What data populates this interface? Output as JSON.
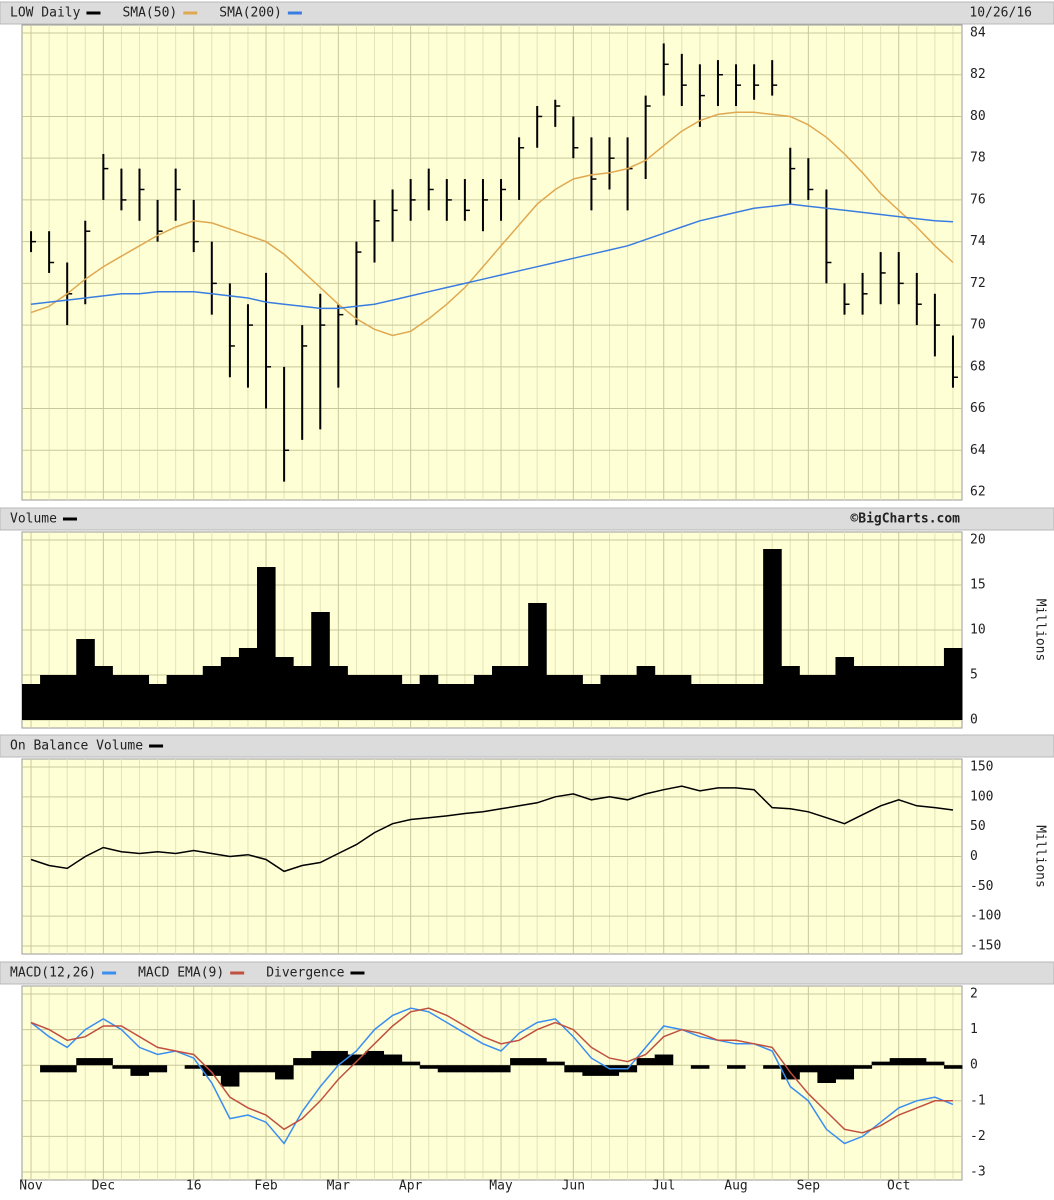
{
  "chart_data": [
    {
      "type": "ohlc",
      "date": "10/26/16",
      "ylim": [
        62,
        84
      ],
      "yticks": [
        62,
        64,
        66,
        68,
        70,
        72,
        74,
        76,
        78,
        80,
        82,
        84
      ],
      "grid": true,
      "series": [
        {
          "name": "LOW Daily",
          "color": "#000000",
          "high": [
            74.5,
            74.5,
            73,
            75,
            78.2,
            77.5,
            77.5,
            76,
            77.5,
            76,
            74,
            72,
            71,
            72.5,
            68,
            70,
            71.5,
            71,
            74,
            76,
            76.5,
            77,
            77.5,
            77,
            77,
            77,
            77,
            79,
            80.5,
            80.8,
            80,
            79,
            79,
            79,
            81,
            83.5,
            83,
            82.5,
            82.7,
            82.5,
            82.5,
            82.7,
            78.5,
            78,
            76.5,
            72,
            72.5,
            73.5,
            73.5,
            72.5,
            71.5,
            69.5
          ],
          "low": [
            73.5,
            72.5,
            70,
            71,
            76,
            75.5,
            75,
            74,
            75,
            73.5,
            70.5,
            67.5,
            67,
            66,
            62.5,
            64.5,
            65,
            67,
            70,
            73,
            74,
            75,
            75.5,
            75,
            75,
            74.5,
            75,
            76,
            78.5,
            79.5,
            78,
            75.5,
            76.5,
            75.5,
            77,
            81,
            80.5,
            79.5,
            80.5,
            80.5,
            80.8,
            81,
            75.8,
            76,
            72,
            70.5,
            70.5,
            71,
            71,
            70,
            68.5,
            67
          ],
          "close": [
            74,
            73,
            71.5,
            74.5,
            77.5,
            76,
            76.5,
            74.5,
            76.5,
            74,
            72,
            69,
            70,
            68,
            64,
            69,
            70,
            70.5,
            73.5,
            75,
            75.5,
            76,
            76.5,
            76,
            75.5,
            76,
            76.5,
            78.5,
            80,
            80.5,
            78.5,
            77,
            78,
            77.5,
            80.5,
            82.5,
            81.5,
            81,
            82,
            81.5,
            81.5,
            81.5,
            77.5,
            76.5,
            73,
            71,
            71.5,
            72.5,
            72,
            71,
            70,
            67.5
          ]
        },
        {
          "name": "SMA(50)",
          "color": "#e0a850",
          "values": [
            70.6,
            70.9,
            71.5,
            72.2,
            72.8,
            73.3,
            73.8,
            74.3,
            74.7,
            75.0,
            74.9,
            74.6,
            74.3,
            74.0,
            73.4,
            72.6,
            71.8,
            71.0,
            70.3,
            69.8,
            69.5,
            69.7,
            70.3,
            71.0,
            71.8,
            72.8,
            73.8,
            74.8,
            75.8,
            76.5,
            77.0,
            77.2,
            77.3,
            77.5,
            77.9,
            78.6,
            79.3,
            79.8,
            80.1,
            80.2,
            80.2,
            80.1,
            80.0,
            79.6,
            79.0,
            78.2,
            77.3,
            76.3,
            75.5,
            74.7,
            73.8,
            73.0
          ]
        },
        {
          "name": "SMA(200)",
          "color": "#3a7de0",
          "values": [
            71.0,
            71.1,
            71.2,
            71.3,
            71.4,
            71.5,
            71.5,
            71.6,
            71.6,
            71.6,
            71.5,
            71.4,
            71.3,
            71.1,
            71.0,
            70.9,
            70.8,
            70.8,
            70.9,
            71.0,
            71.2,
            71.4,
            71.6,
            71.8,
            72.0,
            72.2,
            72.4,
            72.6,
            72.8,
            73.0,
            73.2,
            73.4,
            73.6,
            73.8,
            74.1,
            74.4,
            74.7,
            75.0,
            75.2,
            75.4,
            75.6,
            75.7,
            75.8,
            75.7,
            75.6,
            75.5,
            75.4,
            75.3,
            75.2,
            75.1,
            75.0,
            74.95
          ]
        }
      ]
    },
    {
      "type": "bar",
      "annotation": "©BigCharts.com",
      "y_label": "Millions",
      "ylim": [
        0,
        20
      ],
      "yticks": [
        0,
        5,
        10,
        15,
        20
      ],
      "grid": true,
      "series": [
        {
          "name": "Volume",
          "color": "#000000",
          "values": [
            4,
            5,
            5,
            9,
            6,
            5,
            5,
            4,
            5,
            5,
            6,
            7,
            8,
            17,
            7,
            6,
            12,
            6,
            5,
            5,
            5,
            4,
            5,
            4,
            4,
            5,
            6,
            6,
            13,
            5,
            5,
            4,
            5,
            5,
            6,
            5,
            5,
            4,
            4,
            4,
            4,
            19,
            6,
            5,
            5,
            7,
            6,
            6,
            6,
            6,
            6,
            8
          ]
        }
      ]
    },
    {
      "type": "line",
      "y_label": "Millions",
      "ylim": [
        -150,
        150
      ],
      "yticks": [
        -150,
        -100,
        -50,
        0,
        50,
        100,
        150
      ],
      "grid": true,
      "series": [
        {
          "name": "On Balance Volume",
          "color": "#000000",
          "values": [
            -5,
            -15,
            -20,
            0,
            15,
            8,
            5,
            8,
            5,
            10,
            5,
            0,
            3,
            -5,
            -25,
            -15,
            -10,
            5,
            20,
            40,
            55,
            62,
            65,
            68,
            72,
            75,
            80,
            85,
            90,
            100,
            105,
            95,
            100,
            95,
            105,
            112,
            118,
            110,
            115,
            115,
            112,
            82,
            80,
            75,
            65,
            55,
            70,
            85,
            95,
            85,
            82,
            78
          ]
        }
      ]
    },
    {
      "type": "line",
      "ylim": [
        -3,
        2
      ],
      "yticks": [
        -3,
        -2,
        -1,
        0,
        1,
        2
      ],
      "grid": true,
      "categories": [
        "Nov",
        null,
        null,
        null,
        "Dec",
        null,
        null,
        null,
        null,
        "16",
        null,
        null,
        null,
        "Feb",
        null,
        null,
        null,
        "Mar",
        null,
        null,
        null,
        "Apr",
        null,
        null,
        null,
        null,
        "May",
        null,
        null,
        null,
        "Jun",
        null,
        null,
        null,
        null,
        "Jul",
        null,
        null,
        null,
        "Aug",
        null,
        null,
        null,
        "Sep",
        null,
        null,
        null,
        null,
        "Oct",
        null,
        null,
        null
      ],
      "series": [
        {
          "name": "MACD(12,26)",
          "color": "#3a8ef0",
          "values": [
            1.2,
            0.8,
            0.5,
            1.0,
            1.3,
            1.0,
            0.5,
            0.3,
            0.4,
            0.2,
            -0.5,
            -1.5,
            -1.4,
            -1.6,
            -2.2,
            -1.3,
            -0.6,
            0,
            0.4,
            1.0,
            1.4,
            1.6,
            1.5,
            1.2,
            0.9,
            0.6,
            0.4,
            0.9,
            1.2,
            1.3,
            0.8,
            0.2,
            -0.1,
            -0.1,
            0.5,
            1.1,
            1.0,
            0.8,
            0.7,
            0.6,
            0.6,
            0.4,
            -0.6,
            -1.0,
            -1.8,
            -2.2,
            -2.0,
            -1.6,
            -1.2,
            -1.0,
            -0.9,
            -1.1
          ]
        },
        {
          "name": "MACD EMA(9)",
          "color": "#c05040",
          "values": [
            1.2,
            1.0,
            0.7,
            0.8,
            1.1,
            1.1,
            0.8,
            0.5,
            0.4,
            0.3,
            -0.2,
            -0.9,
            -1.2,
            -1.4,
            -1.8,
            -1.5,
            -1.0,
            -0.4,
            0.1,
            0.6,
            1.1,
            1.5,
            1.6,
            1.4,
            1.1,
            0.8,
            0.6,
            0.7,
            1.0,
            1.2,
            1.0,
            0.5,
            0.2,
            0.1,
            0.3,
            0.8,
            1.0,
            0.9,
            0.7,
            0.7,
            0.6,
            0.5,
            -0.2,
            -0.8,
            -1.3,
            -1.8,
            -1.9,
            -1.7,
            -1.4,
            -1.2,
            -1.0,
            -1.0
          ]
        },
        {
          "name": "Divergence",
          "color": "#000000",
          "type": "bar",
          "values": [
            0,
            -0.2,
            -0.2,
            0.2,
            0.2,
            -0.1,
            -0.3,
            -0.2,
            0,
            -0.1,
            -0.3,
            -0.6,
            -0.2,
            -0.2,
            -0.4,
            0.2,
            0.4,
            0.4,
            0.3,
            0.4,
            0.3,
            0.1,
            -0.1,
            -0.2,
            -0.2,
            -0.2,
            -0.2,
            0.2,
            0.2,
            0.1,
            -0.2,
            -0.3,
            -0.3,
            -0.2,
            0.2,
            0.3,
            0,
            -0.1,
            0,
            -0.1,
            0,
            -0.1,
            -0.4,
            -0.2,
            -0.5,
            -0.4,
            -0.1,
            0.1,
            0.2,
            0.2,
            0.1,
            -0.1
          ]
        }
      ]
    }
  ]
}
